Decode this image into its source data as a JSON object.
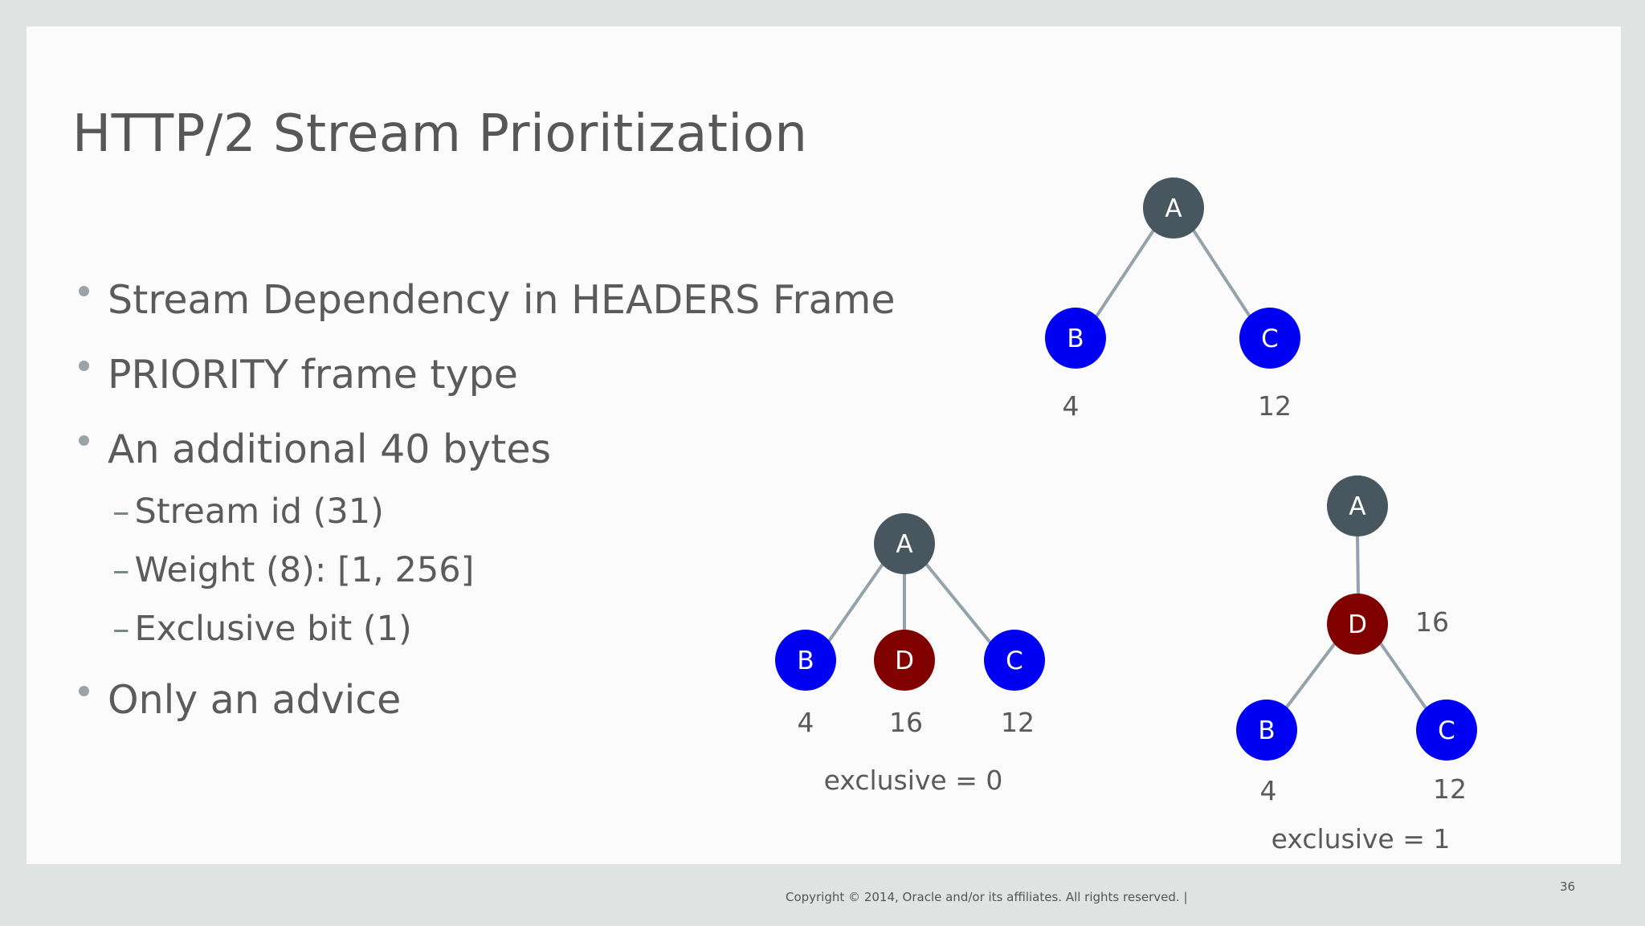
{
  "slide": {
    "title": "HTTP/2 Stream Prioritization",
    "bullets": [
      "Stream Dependency in HEADERS Frame",
      "PRIORITY frame type",
      "An additional 40 bytes",
      "Only an advice"
    ],
    "sub_bullets": [
      "Stream id (31)",
      "Weight (8): [1, 256]",
      "Exclusive bit (1)"
    ],
    "footer": "Copyright © 2014, Oracle and/or its affiliates. All rights reserved.  |",
    "page_number": "36"
  },
  "colors": {
    "root_node": "#48575f",
    "blue_node": "#0000f2",
    "red_node": "#800000"
  },
  "diagrams": {
    "top": {
      "nodes": {
        "a": "A",
        "b": "B",
        "c": "C"
      },
      "weights": {
        "b": "4",
        "c": "12"
      }
    },
    "exclusive0": {
      "nodes": {
        "a": "A",
        "b": "B",
        "d": "D",
        "c": "C"
      },
      "weights": {
        "b": "4",
        "d": "16",
        "c": "12"
      },
      "caption": "exclusive = 0"
    },
    "exclusive1": {
      "nodes": {
        "a": "A",
        "d": "D",
        "b": "B",
        "c": "C"
      },
      "weights": {
        "d": "16",
        "b": "4",
        "c": "12"
      },
      "caption": "exclusive = 1"
    }
  }
}
